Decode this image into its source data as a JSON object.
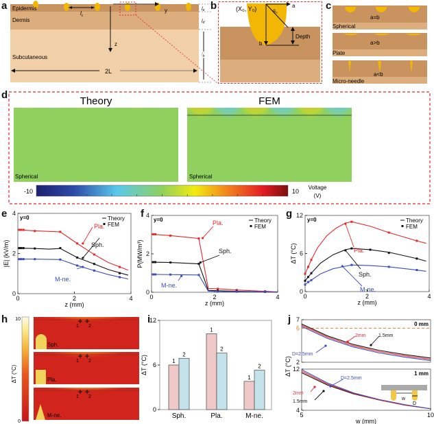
{
  "panel_letters": [
    "a",
    "b",
    "c",
    "d",
    "e",
    "f",
    "g",
    "h",
    "i",
    "j"
  ],
  "panel_a": {
    "layers": [
      "Epidermis",
      "Dermis",
      "Subcutaneous"
    ],
    "axis_y": "y",
    "axis_z": "z",
    "width_label": "2L",
    "spacing_label": "l",
    "spacing_sub": "c",
    "thickness_labels": [
      {
        "main": "l",
        "sub": "e"
      },
      {
        "main": "l",
        "sub": "d"
      },
      {
        "main": "l",
        "sub": "b"
      }
    ],
    "colors": {
      "epidermis": "#c8935f",
      "dermis": "#dcae7e",
      "subcutaneous": "#f1d0a7",
      "electrode": "#f2b705"
    }
  },
  "panel_b": {
    "center_label": "(X₀, Y₀)",
    "angle_label": "θ₀",
    "a_label": "a",
    "b_label": "b",
    "depth_label": "Depth"
  },
  "panel_c": {
    "items": [
      {
        "relation": "a=b",
        "name": "Spherical"
      },
      {
        "relation": "a>b",
        "name": "Plate"
      },
      {
        "relation": "a<b",
        "name": "Micro-needle"
      }
    ]
  },
  "panel_d": {
    "titles": [
      "Theory",
      "FEM"
    ],
    "map_labels": [
      "Spherical",
      "Spherical"
    ],
    "colorbar": {
      "min": "-10",
      "max": "10",
      "label_line1": "Voltage",
      "label_line2": "(V)"
    }
  },
  "chart_data": [
    {
      "panel": "e",
      "type": "line",
      "title": "y=0",
      "xlabel": "z (mm)",
      "ylabel": "|E| (kV/m)",
      "xlim": [
        0,
        4
      ],
      "ylim": [
        0,
        4
      ],
      "xticks": [
        "0",
        "2",
        "4"
      ],
      "yticks": [
        "0",
        "2",
        "4"
      ],
      "legend": {
        "items": [
          "Theory",
          "FEM"
        ],
        "position": "top-right"
      },
      "series": [
        {
          "name": "Pla.",
          "color": "#e8262a",
          "theory": {
            "x": [
              0,
              0.6,
              1.5,
              2.1,
              2.7,
              3.2,
              3.9
            ],
            "y": [
              3.18,
              3.13,
              3.08,
              2.5,
              1.95,
              1.55,
              1.17
            ]
          },
          "fem": {
            "x": [
              0.05,
              0.12,
              0.2,
              0.6,
              1.5,
              2.1,
              2.7,
              3.6
            ],
            "y": [
              3.18,
              3.18,
              3.18,
              3.12,
              3.08,
              2.5,
              1.95,
              1.33
            ]
          }
        },
        {
          "name": "Sph.",
          "color": "#111111",
          "theory": {
            "x": [
              0,
              0.6,
              1.1,
              1.5,
              2.1,
              2.7,
              3.2,
              3.9
            ],
            "y": [
              2.27,
              2.25,
              2.22,
              2.25,
              1.8,
              1.48,
              1.2,
              0.92
            ]
          },
          "fem": {
            "x": [
              0.05,
              0.12,
              0.2,
              0.6,
              1.5,
              2.1,
              2.7,
              3.6
            ],
            "y": [
              2.27,
              2.27,
              2.27,
              2.25,
              2.27,
              1.8,
              1.48,
              1.02
            ]
          }
        },
        {
          "name": "M-ne.",
          "color": "#3b4bbd",
          "theory": {
            "x": [
              0,
              0.6,
              1.5,
              2.1,
              2.7,
              3.2,
              3.9
            ],
            "y": [
              1.72,
              1.72,
              1.7,
              1.4,
              1.15,
              0.95,
              0.73
            ]
          },
          "fem": {
            "x": [
              0.05,
              0.12,
              0.2,
              0.6,
              1.5,
              2.1,
              2.7,
              3.6
            ],
            "y": [
              1.72,
              1.72,
              1.72,
              1.72,
              1.7,
              1.4,
              1.15,
              0.82
            ]
          }
        }
      ]
    },
    {
      "panel": "f",
      "type": "line",
      "title": "y=0",
      "xlabel": "z (mm)",
      "ylabel": "P(MW/m³)",
      "xlim": [
        0,
        4
      ],
      "ylim": [
        0,
        4
      ],
      "xticks": [
        "0",
        "2",
        "4"
      ],
      "yticks": [
        "0",
        "2",
        "4"
      ],
      "legend": {
        "items": [
          "Theory",
          "FEM"
        ],
        "position": "top-right"
      },
      "series": [
        {
          "name": "Pla.",
          "color": "#e8262a",
          "theory": {
            "x": [
              0,
              0.6,
              1.5,
              1.8,
              2.1,
              2.7,
              3.6,
              4.0
            ],
            "y": [
              3.02,
              2.95,
              2.8,
              0.2,
              0.18,
              0.12,
              0.05,
              0.02
            ]
          },
          "fem": {
            "x": [
              0.05,
              0.12,
              0.6,
              1.5,
              2.1,
              2.7,
              3.6
            ],
            "y": [
              3.02,
              3.02,
              2.95,
              2.8,
              0.18,
              0.12,
              0.05
            ]
          }
        },
        {
          "name": "Sph.",
          "color": "#111111",
          "theory": {
            "x": [
              0,
              0.6,
              1.5,
              1.8,
              2.1,
              2.7,
              3.6,
              4.0
            ],
            "y": [
              1.57,
              1.55,
              1.48,
              0.1,
              0.08,
              0.05,
              0.02,
              0.01
            ]
          },
          "fem": {
            "x": [
              0.05,
              0.12,
              0.6,
              1.5,
              2.1,
              2.7,
              3.6
            ],
            "y": [
              1.57,
              1.57,
              1.55,
              1.48,
              0.08,
              0.05,
              0.02
            ]
          }
        },
        {
          "name": "M-ne.",
          "color": "#3b4bbd",
          "theory": {
            "x": [
              0,
              0.6,
              1.5,
              1.8,
              2.1,
              2.7,
              3.6,
              4.0
            ],
            "y": [
              0.93,
              0.92,
              0.9,
              0.06,
              0.04,
              0.03,
              0.02,
              0.01
            ]
          },
          "fem": {
            "x": [
              0.05,
              0.12,
              0.6,
              1.5,
              2.1,
              2.7,
              3.6
            ],
            "y": [
              0.93,
              0.93,
              0.92,
              0.9,
              0.04,
              0.03,
              0.02
            ]
          }
        }
      ]
    },
    {
      "panel": "g",
      "type": "line",
      "title": "y=0",
      "xlabel": "z (mm)",
      "ylabel": "ΔT (°C)",
      "xlim": [
        0,
        4
      ],
      "ylim": [
        0,
        12
      ],
      "xticks": [
        "0",
        "2",
        "4"
      ],
      "yticks": [
        "0",
        "6",
        "12"
      ],
      "legend": {
        "items": [
          "Theory",
          "FEM"
        ],
        "position": "top-right"
      },
      "series": [
        {
          "name": "Pla.",
          "color": "#e8262a",
          "theory": {
            "x": [
              0,
              0.1,
              0.2,
              0.4,
              0.7,
              1.0,
              1.3,
              1.5,
              2.1,
              2.7,
              3.6,
              3.9
            ],
            "y": [
              2.8,
              3.9,
              5.0,
              6.9,
              8.8,
              10.0,
              10.8,
              11.0,
              10.3,
              9.3,
              8.0,
              7.6
            ]
          },
          "fem": {
            "x": [
              0,
              0.1,
              0.2,
              1.5,
              2.7,
              3.6
            ],
            "y": [
              2.8,
              3.9,
              5.0,
              11.0,
              9.3,
              8.0
            ]
          }
        },
        {
          "name": "Sph.",
          "color": "#111111",
          "theory": {
            "x": [
              0,
              0.1,
              0.2,
              0.5,
              0.9,
              1.3,
              1.5,
              2.1,
              2.7,
              3.6,
              3.9
            ],
            "y": [
              1.7,
              2.3,
              2.9,
              4.5,
              5.8,
              6.6,
              6.8,
              6.6,
              6.2,
              5.2,
              4.8
            ]
          },
          "fem": {
            "x": [
              0,
              0.1,
              0.2,
              1.5,
              2.1,
              2.7,
              3.6
            ],
            "y": [
              1.7,
              2.3,
              2.9,
              6.8,
              6.6,
              6.1,
              5.2
            ]
          }
        },
        {
          "name": "M-ne.",
          "color": "#3b4bbd",
          "theory": {
            "x": [
              0,
              0.1,
              0.2,
              0.5,
              0.9,
              1.3,
              1.5,
              2.1,
              2.7,
              3.6,
              3.9
            ],
            "y": [
              1.1,
              1.5,
              1.8,
              2.8,
              3.6,
              4.0,
              4.2,
              4.1,
              3.9,
              3.4,
              3.2
            ]
          },
          "fem": {
            "x": [
              0,
              0.1,
              0.2,
              1.5,
              2.7,
              3.6
            ],
            "y": [
              1.1,
              1.5,
              1.8,
              4.2,
              3.9,
              3.4
            ]
          }
        }
      ]
    },
    {
      "panel": "i",
      "type": "bar",
      "xlabel": "",
      "ylabel": "ΔT (°C)",
      "ylim": [
        0,
        12
      ],
      "yticks": [
        "0",
        "6",
        "12"
      ],
      "categories": [
        "Sph.",
        "Pla.",
        "M-ne."
      ],
      "series": [
        {
          "name": "1",
          "color": "#efc8c8",
          "values": [
            6.0,
            10.2,
            3.8
          ]
        },
        {
          "name": "2",
          "color": "#c3e2ea",
          "values": [
            6.9,
            7.6,
            5.3
          ]
        }
      ]
    },
    {
      "panel": "j-top",
      "type": "line",
      "title": "0 mm",
      "xlabel": "w (mm)",
      "ylabel": "ΔT (°C)",
      "xlim": [
        5,
        10
      ],
      "ylim": [
        2,
        7
      ],
      "yticks": [
        "2",
        "6",
        "7"
      ],
      "reference_line": {
        "y": 6,
        "color": "#f07a2a",
        "label": "6"
      },
      "series": [
        {
          "name": "1.5mm",
          "color": "#111111",
          "x": [
            5,
            6,
            7,
            8,
            9,
            10
          ],
          "y": [
            6.5,
            5.1,
            4.1,
            3.4,
            2.9,
            2.5
          ]
        },
        {
          "name": "2mm",
          "color": "#e8262a",
          "x": [
            5,
            6,
            7,
            8,
            9,
            10
          ],
          "y": [
            6.35,
            4.95,
            3.95,
            3.25,
            2.75,
            2.35
          ]
        },
        {
          "name": "D=2.5mm",
          "color": "#3b4bbd",
          "x": [
            5,
            6,
            7,
            8,
            9,
            10
          ],
          "y": [
            6.2,
            4.8,
            3.8,
            3.1,
            2.6,
            2.2
          ]
        }
      ]
    },
    {
      "panel": "j-bottom",
      "type": "line",
      "title": "1 mm",
      "xlabel": "w (mm)",
      "ylabel": "ΔT (°C)",
      "xlim": [
        5,
        10
      ],
      "ylim": [
        4,
        12
      ],
      "xticks": [
        "5",
        "10"
      ],
      "yticks": [
        "4",
        "12"
      ],
      "series": [
        {
          "name": "1.5mm",
          "color": "#111111",
          "x": [
            5,
            6,
            7,
            8,
            9,
            10
          ],
          "y": [
            11.3,
            8.9,
            7.2,
            6.0,
            5.0,
            4.3
          ]
        },
        {
          "name": "2mm",
          "color": "#e8262a",
          "x": [
            5,
            6,
            7,
            8,
            9,
            10
          ],
          "y": [
            11.6,
            9.1,
            7.3,
            6.0,
            5.0,
            4.3
          ]
        },
        {
          "name": "D=2.5mm",
          "color": "#3b4bbd",
          "x": [
            5,
            6,
            7,
            8,
            9,
            10
          ],
          "y": [
            11.9,
            9.3,
            7.4,
            6.1,
            5.1,
            4.3
          ]
        }
      ],
      "inset_labels": {
        "w": "w",
        "D": "D"
      }
    }
  ],
  "panel_h": {
    "colorbar": {
      "min": "0",
      "max": "10",
      "label": "ΔT (°C)"
    },
    "maps": [
      {
        "name": "Sph.",
        "points": [
          "1",
          "2"
        ]
      },
      {
        "name": "Pla.",
        "points": [
          "1",
          "2"
        ]
      },
      {
        "name": "M-ne.",
        "points": [
          "1",
          "2"
        ]
      }
    ]
  }
}
